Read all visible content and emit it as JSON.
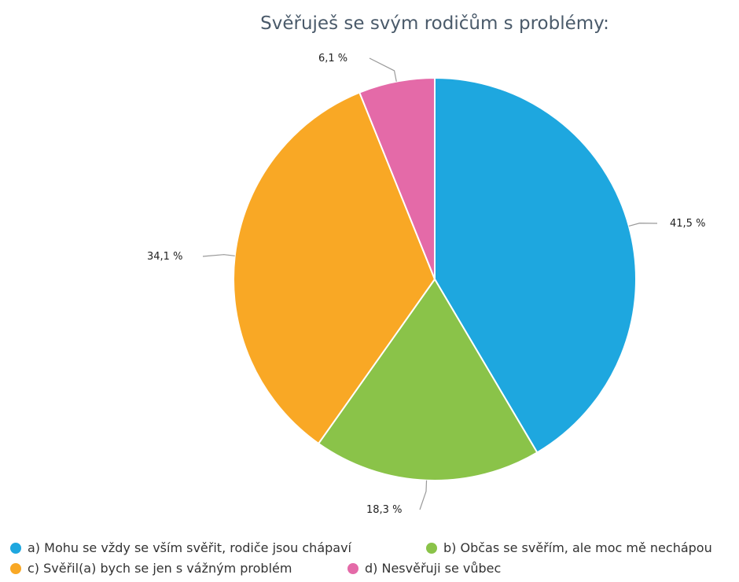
{
  "chart_data": {
    "type": "pie",
    "title": "Svěřuješ se svým rodičům s problémy:",
    "categories": [
      "a) Mohu se vždy se vším svěřit, rodiče jsou chápaví",
      "b) Občas se svěřím, ale moc mě nechápou",
      "c) Svěřil(a) bych se jen s vážným problém",
      "d) Nesvěřuji se vůbec"
    ],
    "values": [
      41.5,
      18.3,
      34.1,
      6.1
    ],
    "value_labels": [
      "41,5 %",
      "18,3 %",
      "34,1 %",
      "6,1 %"
    ],
    "colors": [
      "#1ea7df",
      "#8ac349",
      "#f9a825",
      "#e46aa8"
    ],
    "legend_position": "bottom",
    "start_angle_deg": 0,
    "direction": "clockwise"
  }
}
